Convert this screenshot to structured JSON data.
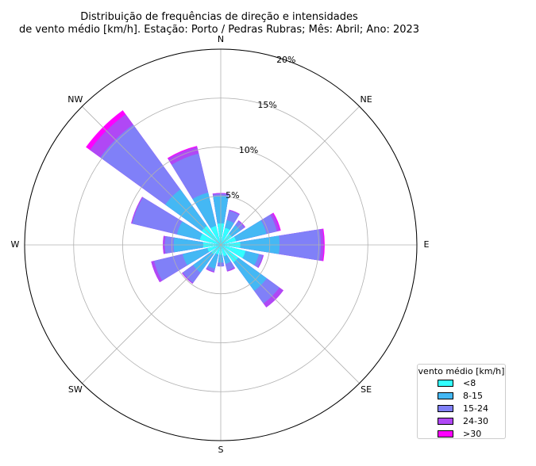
{
  "chart_data": {
    "type": "windrose",
    "title_line1": "Distribuição de frequências de direção e intensidades",
    "title_line2": "de vento médio [km/h]. Estação: Porto / Pedras Rubras; Mês: Abril; Ano: 2023",
    "direction_labels": [
      "N",
      "NE",
      "E",
      "SE",
      "S",
      "SW",
      "W",
      "NW"
    ],
    "radial_ticks": [
      "5%",
      "10%",
      "15%",
      "20%"
    ],
    "radial_tick_values": [
      5,
      10,
      15,
      20
    ],
    "rmax": 20,
    "directions_deg": [
      0,
      22.5,
      45,
      67.5,
      90,
      112.5,
      135,
      157.5,
      180,
      202.5,
      225,
      247.5,
      270,
      292.5,
      315,
      337.5
    ],
    "legend": {
      "title": "vento médio [km/h]",
      "bins": [
        "<8",
        "8-15",
        "15-24",
        "24-30",
        ">30"
      ],
      "colors": [
        "#33ffff",
        "#44b8f4",
        "#8080f8",
        "#b048f5",
        "#ff00ff"
      ]
    },
    "series_cumulative": [
      {
        "name": "<8",
        "values": [
          2.2,
          1.8,
          1.4,
          1.6,
          2.0,
          2.6,
          2.2,
          1.2,
          1.0,
          1.0,
          1.2,
          1.4,
          1.8,
          2.2,
          2.4,
          2.0
        ]
      },
      {
        "name": "8-15",
        "values": [
          5.0,
          2.6,
          2.5,
          4.8,
          6.0,
          4.0,
          5.8,
          2.0,
          1.8,
          2.5,
          3.5,
          4.0,
          4.8,
          4.6,
          7.0,
          5.5
        ]
      },
      {
        "name": "15-24",
        "values": [
          5.2,
          3.6,
          3.0,
          5.9,
          10.2,
          4.4,
          7.4,
          2.7,
          2.2,
          2.8,
          4.8,
          7.0,
          5.7,
          9.3,
          15.2,
          9.6
        ]
      },
      {
        "name": "24-30",
        "values": [
          5.3,
          3.7,
          3.1,
          6.2,
          10.5,
          4.5,
          7.9,
          2.8,
          2.2,
          2.9,
          4.9,
          7.3,
          5.9,
          9.4,
          16.5,
          10.3
        ]
      },
      {
        "name": ">30",
        "values": [
          5.3,
          3.7,
          3.1,
          6.3,
          10.6,
          4.5,
          7.9,
          2.8,
          2.2,
          2.9,
          4.9,
          7.3,
          5.9,
          9.4,
          17.0,
          10.4
        ]
      }
    ]
  }
}
